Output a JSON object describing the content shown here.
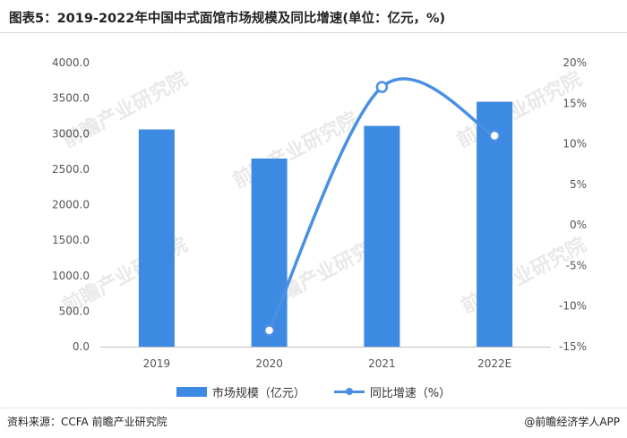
{
  "title": "图表5：2019-2022年中国中式面馆市场规模及同比增速(单位：亿元，%)",
  "source": "资料来源：CCFA 前瞻产业研究院",
  "credit": "@前瞻经济学人APP",
  "watermark": "前瞻产业研究院",
  "colors": {
    "bar": "#3d8ae3",
    "line": "#4a90e2"
  },
  "chart_data": {
    "type": "bar",
    "categories": [
      "2019",
      "2020",
      "2021",
      "2022E"
    ],
    "series": [
      {
        "name": "市场规模（亿元）",
        "type": "bar",
        "axis": "left",
        "values": [
          3060,
          2650,
          3110,
          3450
        ]
      },
      {
        "name": "同比增速（%）",
        "type": "line",
        "axis": "right",
        "values": [
          null,
          -13,
          17,
          11
        ]
      }
    ],
    "y_left": {
      "min": 0,
      "max": 4000,
      "step": 500,
      "ticks": [
        "0.0",
        "500.0",
        "1000.0",
        "1500.0",
        "2000.0",
        "2500.0",
        "3000.0",
        "3500.0",
        "4000.0"
      ]
    },
    "y_right": {
      "min": -15,
      "max": 20,
      "step": 5,
      "ticks": [
        "-15%",
        "-10%",
        "-5%",
        "0%",
        "5%",
        "10%",
        "15%",
        "20%"
      ]
    },
    "legend_position": "bottom",
    "grid": false
  }
}
